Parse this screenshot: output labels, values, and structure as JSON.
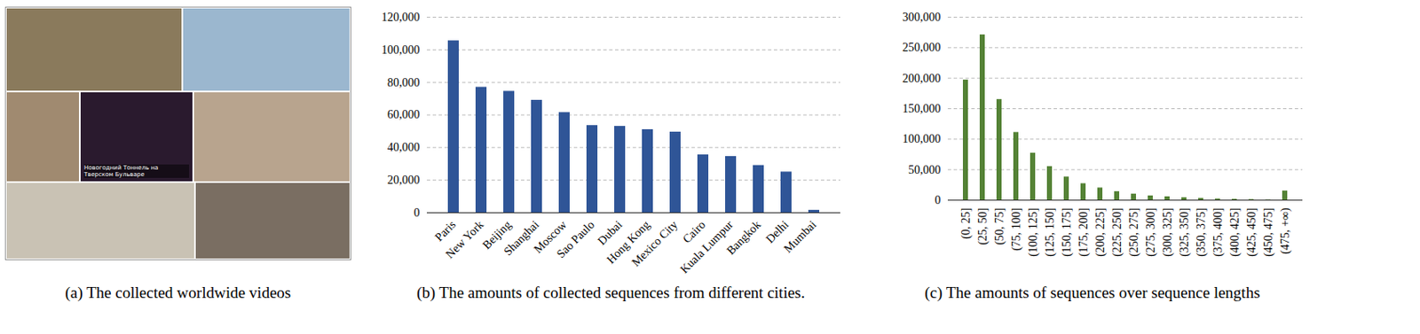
{
  "chart_data": [
    {
      "type": "image",
      "caption": "(a) The collected worldwide videos",
      "annotations": [
        "Новогодний Тоннель на Тверском Бульваре"
      ]
    },
    {
      "type": "bar",
      "caption": "(b) The amounts of collected sequences from different cities.",
      "categories": [
        "Paris",
        "New York",
        "Beijing",
        "Shanghai",
        "Moscow",
        "Sao Paulo",
        "Dubai",
        "Hong Kong",
        "Mexico City",
        "Cairo",
        "Kuala Lumpur",
        "Bangkok",
        "Delhi",
        "Mumbai"
      ],
      "values": [
        105500,
        77000,
        74500,
        69000,
        61500,
        53500,
        53000,
        51000,
        49500,
        35500,
        34500,
        29000,
        25000,
        1500
      ],
      "color": "#2f5597",
      "ylim": [
        0,
        120000
      ],
      "yticks": [
        0,
        {
          "value": 20000,
          "label": "20,000"
        },
        {
          "value": 40000,
          "label": "40,000"
        },
        {
          "value": 60000,
          "label": "60,000"
        },
        {
          "value": 80000,
          "label": "80,000"
        },
        {
          "value": 100000,
          "label": "100,000"
        },
        {
          "value": 120000,
          "label": "120,000"
        }
      ],
      "grid": true
    },
    {
      "type": "bar",
      "caption": "(c) The amounts of sequences over sequence lengths",
      "categories": [
        "(0, 25]",
        "(25, 50]",
        "(50, 75]",
        "(75, 100]",
        "(100, 125]",
        "(125, 150]",
        "(150, 175]",
        "(175, 200]",
        "(200, 225]",
        "(225, 250]",
        "(250, 275]",
        "(275, 300]",
        "(300, 325]",
        "(325, 350]",
        "(350, 375]",
        "(375, 400]",
        "(400, 425]",
        "(425, 450]",
        "(450, 475]",
        "(475, +∞)"
      ],
      "values": [
        197000,
        271000,
        165000,
        111000,
        77000,
        55000,
        38000,
        27000,
        20000,
        14000,
        10000,
        7000,
        5500,
        4000,
        3000,
        2000,
        1500,
        1000,
        500,
        15000
      ],
      "color": "#548235",
      "ylim": [
        0,
        300000
      ],
      "yticks": [
        0,
        {
          "value": 50000,
          "label": "50,000"
        },
        {
          "value": 100000,
          "label": "100,000"
        },
        {
          "value": 150000,
          "label": "150,000"
        },
        {
          "value": 200000,
          "label": "200,000"
        },
        {
          "value": 250000,
          "label": "250,000"
        },
        {
          "value": 300000,
          "label": "300,000"
        }
      ],
      "grid": true
    }
  ]
}
